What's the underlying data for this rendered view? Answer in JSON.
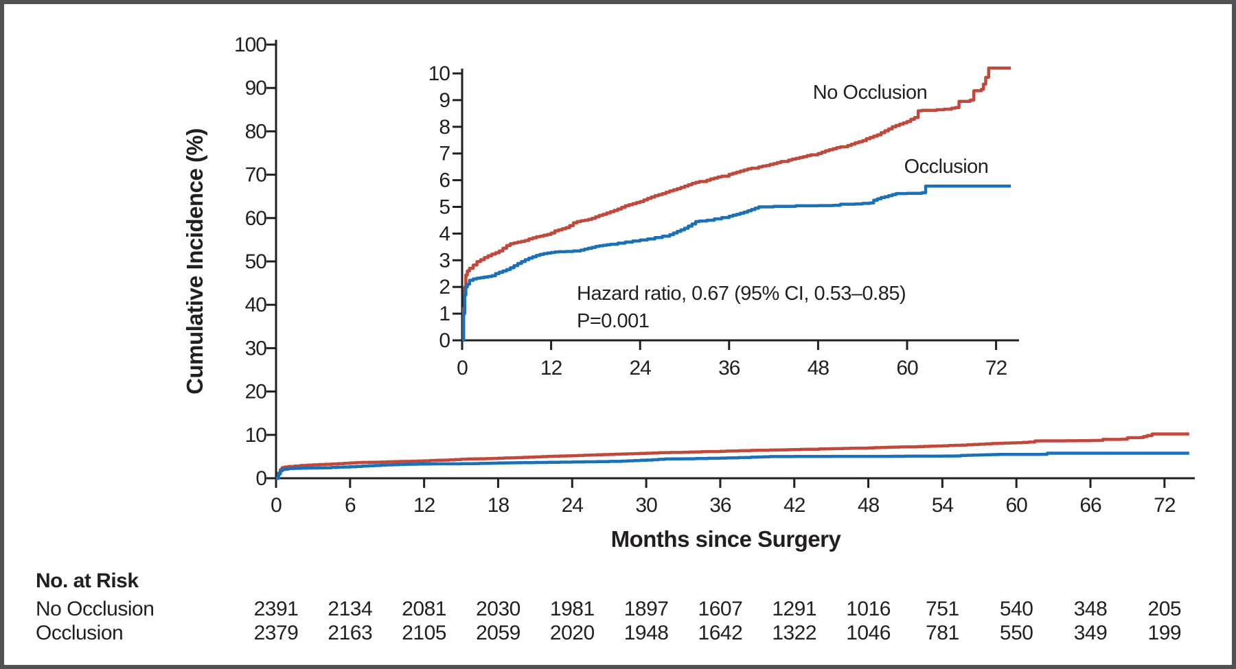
{
  "figure": {
    "background": "#ffffff",
    "border_color": "#505254",
    "axis_color": "#231f20"
  },
  "chart_data": {
    "type": "line",
    "subtype": "step-cumulative-incidence",
    "title": "",
    "xlabel": "Months since Surgery",
    "ylabel": "Cumulative Incidence (%)",
    "main_axis": {
      "xlim": [
        0,
        74.5
      ],
      "ylim": [
        0,
        100
      ],
      "xticks": [
        0,
        6,
        12,
        18,
        24,
        30,
        36,
        42,
        48,
        54,
        60,
        66,
        72
      ],
      "yticks": [
        0,
        10,
        20,
        30,
        40,
        50,
        60,
        70,
        80,
        90,
        100
      ],
      "grid": false
    },
    "inset_axis": {
      "xlim": [
        0,
        75
      ],
      "ylim": [
        0,
        10
      ],
      "xticks": [
        0,
        12,
        24,
        36,
        48,
        60,
        72
      ],
      "yticks": [
        0,
        1,
        2,
        3,
        4,
        5,
        6,
        7,
        8,
        9,
        10
      ],
      "grid": false
    },
    "annotation": {
      "line1": "Hazard ratio, 0.67 (95% CI, 0.53–0.85)",
      "line2": "P=0.001"
    },
    "series": [
      {
        "name": "No Occlusion",
        "color": "#c0493c",
        "points": [
          [
            0,
            0
          ],
          [
            0.2,
            1.2
          ],
          [
            0.35,
            2.0
          ],
          [
            0.5,
            2.45
          ],
          [
            0.7,
            2.6
          ],
          [
            1,
            2.7
          ],
          [
            1.5,
            2.82
          ],
          [
            2,
            2.95
          ],
          [
            2.5,
            3.02
          ],
          [
            3,
            3.1
          ],
          [
            3.5,
            3.17
          ],
          [
            4,
            3.23
          ],
          [
            4.5,
            3.28
          ],
          [
            5,
            3.35
          ],
          [
            5.5,
            3.45
          ],
          [
            6,
            3.55
          ],
          [
            6.5,
            3.62
          ],
          [
            7,
            3.65
          ],
          [
            7.5,
            3.68
          ],
          [
            8,
            3.71
          ],
          [
            8.5,
            3.74
          ],
          [
            9,
            3.8
          ],
          [
            9.5,
            3.84
          ],
          [
            10,
            3.88
          ],
          [
            10.5,
            3.9
          ],
          [
            11,
            3.94
          ],
          [
            11.5,
            3.97
          ],
          [
            12,
            4.02
          ],
          [
            12.5,
            4.1
          ],
          [
            13,
            4.14
          ],
          [
            13.5,
            4.18
          ],
          [
            14,
            4.22
          ],
          [
            14.5,
            4.3
          ],
          [
            15,
            4.4
          ],
          [
            15.5,
            4.45
          ],
          [
            16,
            4.48
          ],
          [
            16.5,
            4.5
          ],
          [
            17,
            4.53
          ],
          [
            17.5,
            4.57
          ],
          [
            18,
            4.63
          ],
          [
            18.5,
            4.68
          ],
          [
            19,
            4.72
          ],
          [
            19.5,
            4.77
          ],
          [
            20,
            4.82
          ],
          [
            20.5,
            4.87
          ],
          [
            21,
            4.92
          ],
          [
            21.5,
            4.98
          ],
          [
            22,
            5.04
          ],
          [
            22.5,
            5.08
          ],
          [
            23,
            5.12
          ],
          [
            23.5,
            5.16
          ],
          [
            24,
            5.2
          ],
          [
            24.5,
            5.26
          ],
          [
            25,
            5.32
          ],
          [
            25.5,
            5.37
          ],
          [
            26,
            5.42
          ],
          [
            26.5,
            5.46
          ],
          [
            27,
            5.5
          ],
          [
            27.5,
            5.55
          ],
          [
            28,
            5.6
          ],
          [
            28.5,
            5.64
          ],
          [
            29,
            5.68
          ],
          [
            29.5,
            5.73
          ],
          [
            30,
            5.78
          ],
          [
            30.5,
            5.83
          ],
          [
            31,
            5.88
          ],
          [
            31.5,
            5.92
          ],
          [
            32,
            5.95
          ],
          [
            33,
            6.0
          ],
          [
            33.5,
            6.05
          ],
          [
            34,
            6.08
          ],
          [
            34.5,
            6.12
          ],
          [
            35,
            6.15
          ],
          [
            36,
            6.22
          ],
          [
            36.5,
            6.26
          ],
          [
            37,
            6.3
          ],
          [
            37.5,
            6.34
          ],
          [
            38,
            6.38
          ],
          [
            38.5,
            6.42
          ],
          [
            39,
            6.45
          ],
          [
            40,
            6.5
          ],
          [
            40.5,
            6.53
          ],
          [
            41,
            6.55
          ],
          [
            41.5,
            6.59
          ],
          [
            42,
            6.62
          ],
          [
            42.5,
            6.66
          ],
          [
            43,
            6.7
          ],
          [
            44,
            6.75
          ],
          [
            44.5,
            6.79
          ],
          [
            45,
            6.82
          ],
          [
            45.5,
            6.85
          ],
          [
            46,
            6.88
          ],
          [
            46.5,
            6.92
          ],
          [
            47,
            6.95
          ],
          [
            48,
            7.0
          ],
          [
            48.5,
            7.05
          ],
          [
            49,
            7.1
          ],
          [
            49.5,
            7.14
          ],
          [
            50,
            7.18
          ],
          [
            50.5,
            7.22
          ],
          [
            51,
            7.25
          ],
          [
            52,
            7.3
          ],
          [
            52.5,
            7.35
          ],
          [
            53,
            7.4
          ],
          [
            53.5,
            7.44
          ],
          [
            54,
            7.48
          ],
          [
            54.5,
            7.55
          ],
          [
            55,
            7.6
          ],
          [
            55.5,
            7.65
          ],
          [
            56,
            7.7
          ],
          [
            56.5,
            7.78
          ],
          [
            57,
            7.85
          ],
          [
            57.5,
            7.92
          ],
          [
            58,
            8.0
          ],
          [
            58.5,
            8.05
          ],
          [
            59,
            8.1
          ],
          [
            59.5,
            8.15
          ],
          [
            60,
            8.2
          ],
          [
            60.5,
            8.28
          ],
          [
            61,
            8.35
          ],
          [
            61.5,
            8.6
          ],
          [
            62,
            8.62
          ],
          [
            64,
            8.64
          ],
          [
            65,
            8.66
          ],
          [
            66,
            8.7
          ],
          [
            66.5,
            8.72
          ],
          [
            67,
            8.95
          ],
          [
            68.5,
            9.0
          ],
          [
            69,
            9.35
          ],
          [
            70,
            9.4
          ],
          [
            70.3,
            9.6
          ],
          [
            70.6,
            9.85
          ],
          [
            71,
            10.2
          ],
          [
            74,
            10.2
          ]
        ]
      },
      {
        "name": "Occlusion",
        "color": "#1b71b7",
        "points": [
          [
            0,
            0
          ],
          [
            0.2,
            1.0
          ],
          [
            0.35,
            1.7
          ],
          [
            0.5,
            2.0
          ],
          [
            0.7,
            2.1
          ],
          [
            1,
            2.25
          ],
          [
            1.5,
            2.3
          ],
          [
            2,
            2.33
          ],
          [
            2.5,
            2.35
          ],
          [
            3,
            2.37
          ],
          [
            3.5,
            2.39
          ],
          [
            4,
            2.42
          ],
          [
            4.5,
            2.5
          ],
          [
            5,
            2.55
          ],
          [
            5.5,
            2.6
          ],
          [
            6,
            2.65
          ],
          [
            6.5,
            2.72
          ],
          [
            7,
            2.8
          ],
          [
            7.5,
            2.88
          ],
          [
            8,
            2.95
          ],
          [
            8.5,
            3.02
          ],
          [
            9,
            3.08
          ],
          [
            9.5,
            3.13
          ],
          [
            10,
            3.18
          ],
          [
            10.5,
            3.22
          ],
          [
            11,
            3.25
          ],
          [
            11.5,
            3.27
          ],
          [
            12,
            3.29
          ],
          [
            12.5,
            3.31
          ],
          [
            13,
            3.32
          ],
          [
            14,
            3.33
          ],
          [
            15,
            3.35
          ],
          [
            16,
            3.38
          ],
          [
            16.5,
            3.42
          ],
          [
            17,
            3.45
          ],
          [
            17.5,
            3.48
          ],
          [
            18,
            3.52
          ],
          [
            18.5,
            3.54
          ],
          [
            19,
            3.56
          ],
          [
            19.5,
            3.58
          ],
          [
            20,
            3.6
          ],
          [
            21,
            3.64
          ],
          [
            22,
            3.68
          ],
          [
            23,
            3.72
          ],
          [
            24,
            3.76
          ],
          [
            25,
            3.8
          ],
          [
            26,
            3.85
          ],
          [
            27,
            3.9
          ],
          [
            28,
            3.96
          ],
          [
            28.5,
            4.02
          ],
          [
            29,
            4.08
          ],
          [
            29.5,
            4.14
          ],
          [
            30,
            4.2
          ],
          [
            30.5,
            4.28
          ],
          [
            31,
            4.36
          ],
          [
            31.5,
            4.45
          ],
          [
            32,
            4.47
          ],
          [
            33,
            4.5
          ],
          [
            34,
            4.55
          ],
          [
            35,
            4.6
          ],
          [
            36,
            4.65
          ],
          [
            36.5,
            4.69
          ],
          [
            37,
            4.72
          ],
          [
            37.5,
            4.76
          ],
          [
            38,
            4.8
          ],
          [
            38.5,
            4.85
          ],
          [
            39,
            4.9
          ],
          [
            39.5,
            4.95
          ],
          [
            40,
            5.0
          ],
          [
            42,
            5.02
          ],
          [
            45,
            5.04
          ],
          [
            48,
            5.05
          ],
          [
            50,
            5.06
          ],
          [
            51,
            5.1
          ],
          [
            53,
            5.11
          ],
          [
            54,
            5.13
          ],
          [
            55,
            5.15
          ],
          [
            55.5,
            5.25
          ],
          [
            56,
            5.3
          ],
          [
            56.5,
            5.35
          ],
          [
            57,
            5.38
          ],
          [
            57.5,
            5.42
          ],
          [
            58,
            5.46
          ],
          [
            58.5,
            5.5
          ],
          [
            60,
            5.51
          ],
          [
            62,
            5.53
          ],
          [
            62.5,
            5.78
          ],
          [
            74,
            5.78
          ]
        ]
      }
    ]
  },
  "risk_table": {
    "title": "No. at Risk",
    "months": [
      0,
      6,
      12,
      18,
      24,
      30,
      36,
      42,
      48,
      54,
      60,
      66,
      72
    ],
    "rows": [
      {
        "label": "No Occlusion",
        "values": [
          2391,
          2134,
          2081,
          2030,
          1981,
          1897,
          1607,
          1291,
          1016,
          751,
          540,
          348,
          205
        ]
      },
      {
        "label": "Occlusion",
        "values": [
          2379,
          2163,
          2105,
          2059,
          2020,
          1948,
          1642,
          1322,
          1046,
          781,
          550,
          349,
          199
        ]
      }
    ]
  }
}
